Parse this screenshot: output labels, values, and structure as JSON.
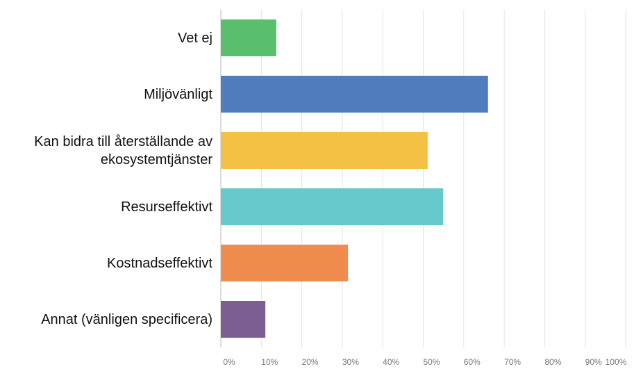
{
  "chart_data": {
    "type": "barh",
    "categories": [
      "Vet ej",
      "Miljövänligt",
      "Kan bidra till återställande av ekosystemtjänster",
      "Resurseffektivt",
      "Kostnadseffektivt",
      "Annat (vänligen specificera)"
    ],
    "values": [
      13.7,
      66.0,
      51.1,
      54.9,
      31.4,
      11.0
    ],
    "colors": [
      "#5abf6d",
      "#4f7dbd",
      "#f5c144",
      "#68c9cc",
      "#f08c4e",
      "#7c5e93"
    ],
    "xlim": [
      0,
      100
    ],
    "xticks": [
      {
        "value": 0,
        "label": "0%"
      },
      {
        "value": 10,
        "label": "10%"
      },
      {
        "value": 20,
        "label": "20%"
      },
      {
        "value": 30,
        "label": "30%"
      },
      {
        "value": 40,
        "label": "40%"
      },
      {
        "value": 50,
        "label": "50%"
      },
      {
        "value": 60,
        "label": "60%"
      },
      {
        "value": 70,
        "label": "70%"
      },
      {
        "value": 80,
        "label": "80%"
      },
      {
        "value": 90,
        "label": "90%"
      },
      {
        "value": 100,
        "label": "100%"
      }
    ],
    "grid": true
  }
}
